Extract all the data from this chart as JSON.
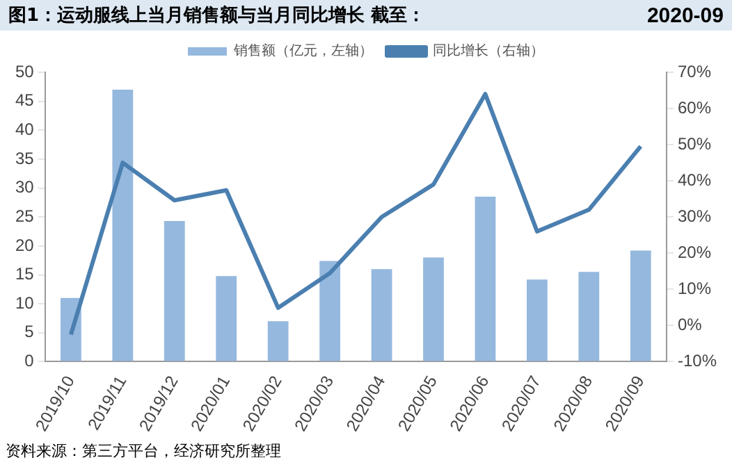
{
  "chart_data": {
    "type": "bar",
    "title": "图1：运动服线上当月销售额与当月同比增长  截至：",
    "subtitle": "2020-09",
    "categories": [
      "2019/10",
      "2019/11",
      "2019/12",
      "2020/01",
      "2020/02",
      "2020/03",
      "2020/04",
      "2020/05",
      "2020/06",
      "2020/07",
      "2020/08",
      "2020/09"
    ],
    "series": [
      {
        "name": "销售额（亿元，左轴）",
        "color": "#95b8de",
        "values": [
          11,
          47,
          24.3,
          14.8,
          7,
          17.4,
          16,
          18,
          28.5,
          14.2,
          15.5,
          19.2
        ]
      },
      {
        "name": "同比增长（右轴）",
        "type": "line",
        "axis": "y2",
        "color": "#4a7fb0",
        "values": [
          -2.5,
          45,
          34.6,
          37.4,
          4.9,
          14.5,
          30,
          39,
          64,
          26,
          32,
          49.5
        ]
      }
    ],
    "ylim": [
      0,
      50
    ],
    "yticks": [
      0,
      5,
      10,
      15,
      20,
      25,
      30,
      35,
      40,
      45,
      50
    ],
    "y2lim": [
      -10,
      70
    ],
    "y2ticks": [
      {
        "value": -10,
        "label": "-10%"
      },
      {
        "value": 0,
        "label": "0%"
      },
      {
        "value": 10,
        "label": "10%"
      },
      {
        "value": 20,
        "label": "20%"
      },
      {
        "value": 30,
        "label": "30%"
      },
      {
        "value": 40,
        "label": "40%"
      },
      {
        "value": 50,
        "label": "50%"
      },
      {
        "value": 60,
        "label": "60%"
      },
      {
        "value": 70,
        "label": "70%"
      }
    ],
    "grid": false,
    "legend": "top",
    "marker": "none",
    "annotations": [
      "资料来源：第三方平台，经济研究所整理"
    ]
  }
}
